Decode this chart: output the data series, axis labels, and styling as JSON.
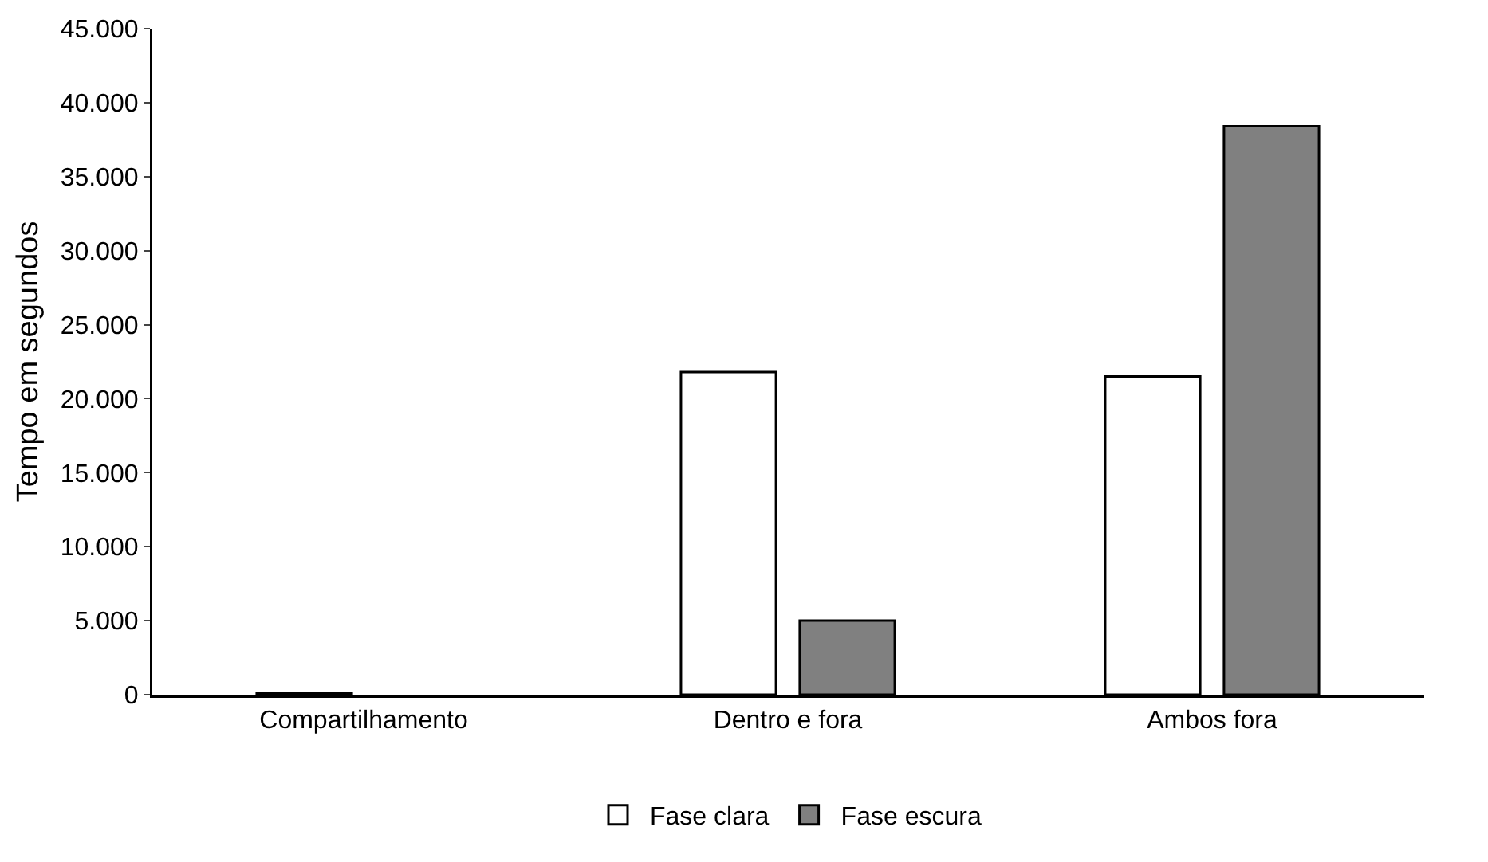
{
  "chart_data": {
    "type": "bar",
    "ylabel": "Tempo em segundos",
    "categories": [
      "Compartilhamento",
      "Dentro e fora",
      "Ambos fora"
    ],
    "series": [
      {
        "name": "Fase clara",
        "color": "#ffffff",
        "values": [
          100,
          21800,
          21500
        ]
      },
      {
        "name": "Fase escura",
        "color": "#808080",
        "values": [
          null,
          5000,
          38400
        ]
      }
    ],
    "ylim": [
      0,
      45000
    ],
    "yticks": [
      0,
      {
        "value": 5000,
        "label": "5.000"
      },
      {
        "value": 10000,
        "label": "10.000"
      },
      {
        "value": 15000,
        "label": "15.000"
      },
      {
        "value": 20000,
        "label": "20.000"
      },
      {
        "value": 25000,
        "label": "25.000"
      },
      {
        "value": 30000,
        "label": "30.000"
      },
      {
        "value": 35000,
        "label": "35.000"
      },
      {
        "value": 40000,
        "label": "40.000"
      },
      {
        "value": 45000,
        "label": "45.000"
      }
    ],
    "grid": false,
    "legend": "bottom"
  }
}
